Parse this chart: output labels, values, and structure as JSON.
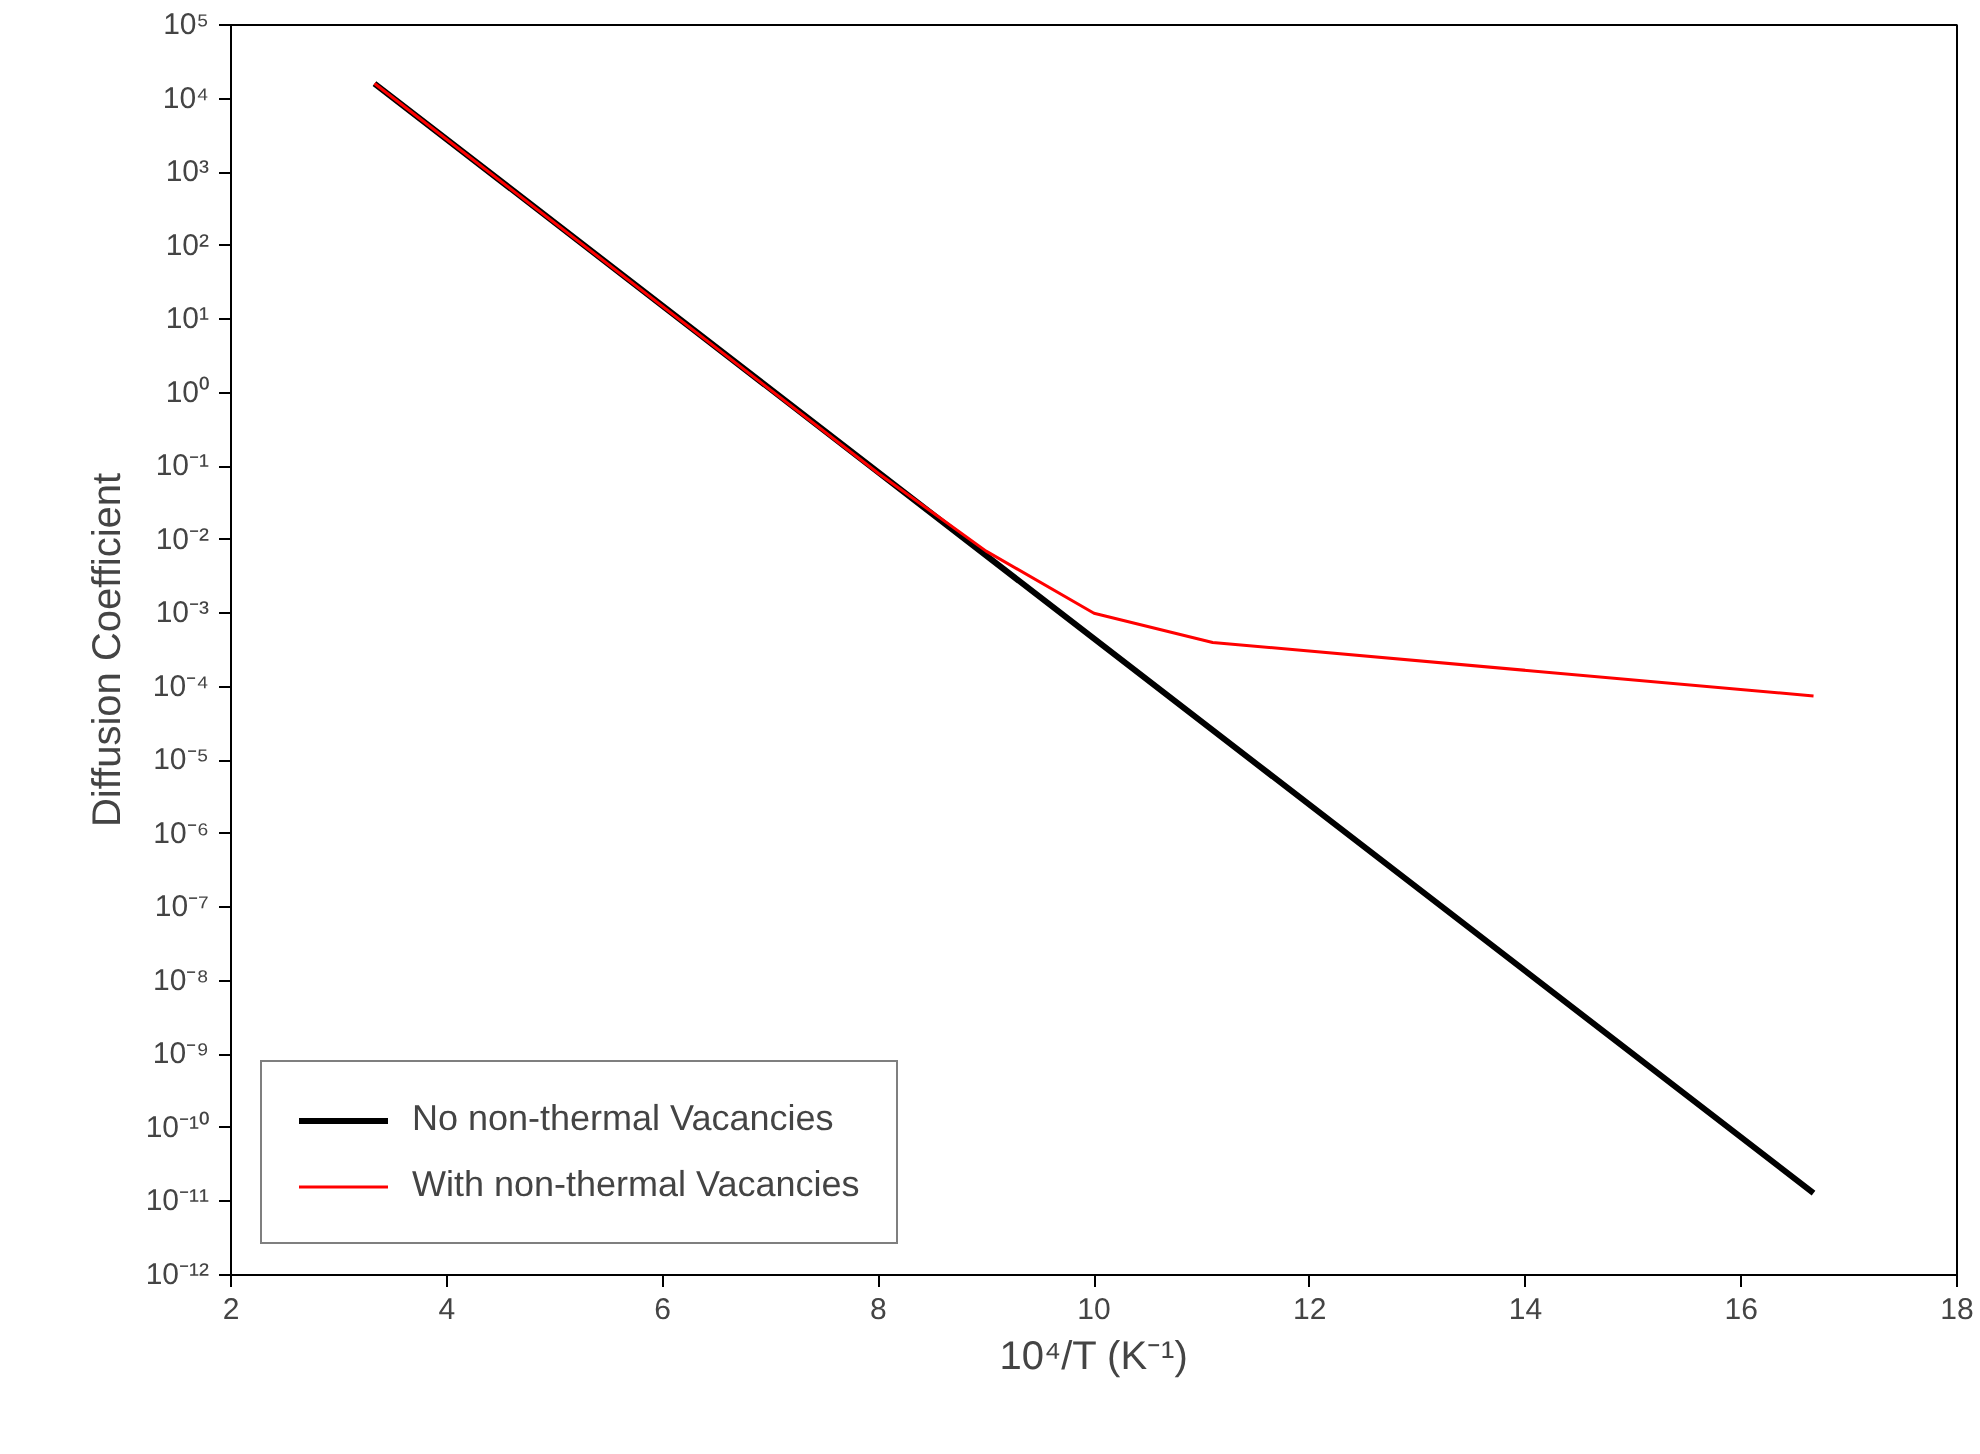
{
  "chart_data": {
    "type": "line",
    "xlabel": "10⁴/T (K⁻¹)",
    "ylabel": "Diffusion Coefficient",
    "log": "y",
    "grid": false,
    "legend": "bottom left",
    "marker": "none",
    "line_style": "solid",
    "xlim": [
      2,
      18
    ],
    "xticks": [
      2,
      4,
      6,
      8,
      10,
      12,
      14,
      16,
      18
    ],
    "ylim": [
      1e-12,
      100000.0
    ],
    "yticks": [
      {
        "value": 1e-12,
        "label": "10⁻¹²"
      },
      {
        "value": 1e-11,
        "label": "10⁻¹¹"
      },
      {
        "value": 1e-10,
        "label": "10⁻¹⁰"
      },
      {
        "value": 1e-09,
        "label": "10⁻⁹"
      },
      {
        "value": 1e-08,
        "label": "10⁻⁸"
      },
      {
        "value": 1e-07,
        "label": "10⁻⁷"
      },
      {
        "value": 1e-06,
        "label": "10⁻⁶"
      },
      {
        "value": 1e-05,
        "label": "10⁻⁵"
      },
      {
        "value": 0.0001,
        "label": "10⁻⁴"
      },
      {
        "value": 0.001,
        "label": "10⁻³"
      },
      {
        "value": 0.01,
        "label": "10⁻²"
      },
      {
        "value": 0.1,
        "label": "10⁻¹"
      },
      {
        "value": 1,
        "label": "10⁰"
      },
      {
        "value": 10,
        "label": "10¹"
      },
      {
        "value": 100,
        "label": "10²"
      },
      {
        "value": 1000,
        "label": "10³"
      },
      {
        "value": 10000.0,
        "label": "10⁴"
      },
      {
        "value": 100000.0,
        "label": "10⁵"
      }
    ],
    "series": [
      {
        "name": "No non-thermal Vacancies",
        "color": "#000000",
        "x": [
          3.33,
          10,
          16.67
        ],
        "values": [
          16000,
          0.00045,
          1.3e-11
        ]
      },
      {
        "name": "With non-thermal Vacancies",
        "color": "#ff0000",
        "x": [
          3.33,
          8,
          9,
          10,
          11.1,
          16.67
        ],
        "values": [
          16000,
          0.08,
          0.007,
          0.001,
          0.0004,
          7.5e-05
        ]
      }
    ]
  }
}
